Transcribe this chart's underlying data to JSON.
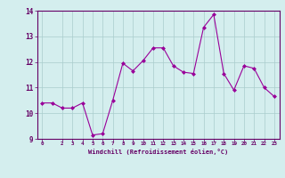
{
  "x": [
    0,
    1,
    2,
    3,
    4,
    5,
    6,
    7,
    8,
    9,
    10,
    11,
    12,
    13,
    14,
    15,
    16,
    17,
    18,
    19,
    20,
    21,
    22,
    23
  ],
  "y": [
    10.4,
    10.4,
    10.2,
    10.2,
    10.4,
    9.15,
    9.2,
    10.5,
    11.95,
    11.65,
    12.05,
    12.55,
    12.55,
    11.85,
    11.6,
    11.55,
    13.35,
    13.85,
    11.55,
    10.9,
    11.85,
    11.75,
    11.0,
    10.65
  ],
  "line_color": "#990099",
  "marker": "D",
  "marker_size": 2,
  "bg_color": "#d4eeee",
  "grid_color": "#aacccc",
  "xlabel": "Windchill (Refroidissement éolien,°C)",
  "xlabel_color": "#660066",
  "tick_color": "#660066",
  "ylim": [
    9.0,
    14.0
  ],
  "xlim": [
    -0.5,
    23.5
  ],
  "yticks": [
    9,
    10,
    11,
    12,
    13,
    14
  ],
  "xticks": [
    0,
    2,
    3,
    4,
    5,
    6,
    7,
    8,
    9,
    10,
    11,
    12,
    13,
    14,
    15,
    16,
    17,
    18,
    19,
    20,
    21,
    22,
    23
  ],
  "xtick_labels": [
    "0",
    "2",
    "3",
    "4",
    "5",
    "6",
    "7",
    "8",
    "9",
    "10",
    "11",
    "12",
    "13",
    "14",
    "15",
    "16",
    "17",
    "18",
    "19",
    "20",
    "21",
    "22",
    "23"
  ]
}
